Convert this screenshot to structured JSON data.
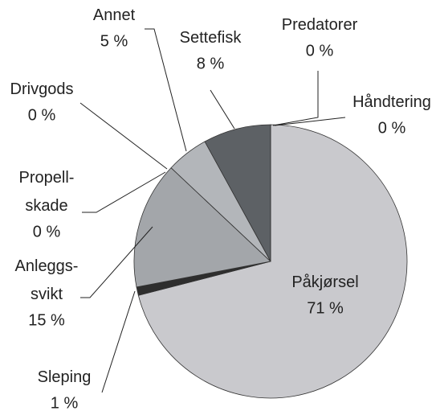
{
  "chart_data": {
    "type": "pie",
    "categories": [
      "Påkjørsel",
      "Sleping",
      "Anleggs-\nsvikt",
      "Propell-\nskade",
      "Drivgods",
      "Annet",
      "Settefisk",
      "Predatorer",
      "Håndtering"
    ],
    "values": [
      71,
      1,
      15,
      0,
      0,
      5,
      8,
      0,
      0
    ],
    "value_labels": [
      "71 %",
      "1 %",
      "15 %",
      "0 %",
      "0 %",
      "5 %",
      "8 %",
      "0 %",
      "0 %"
    ],
    "colors": [
      "#c9c9cd",
      "#2e2e2e",
      "#a3a6aa",
      "#6a6a6a",
      "#e0e0e0",
      "#b3b6ba",
      "#5d6165",
      "#444444",
      "#444444"
    ]
  }
}
